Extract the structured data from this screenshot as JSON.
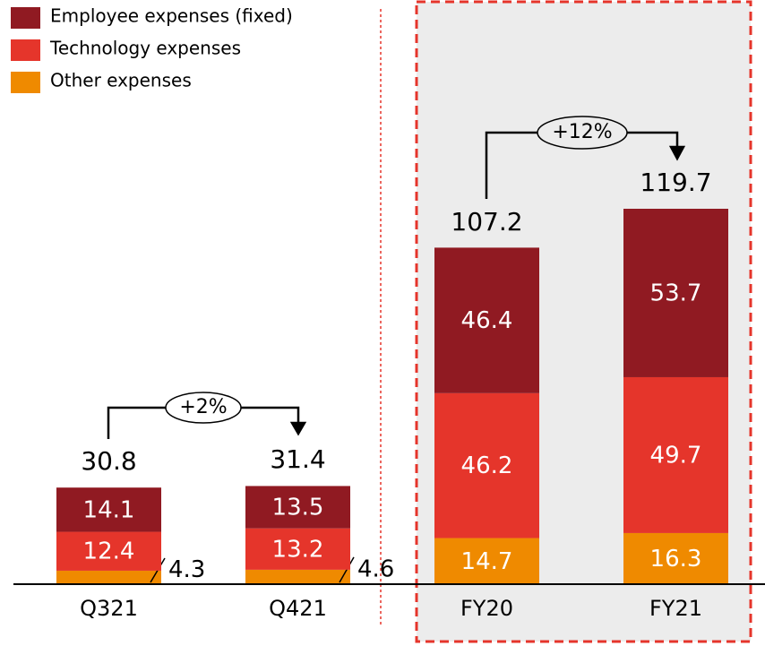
{
  "chart_data": {
    "type": "stacked_bar",
    "categories": [
      "Q321",
      "Q421",
      "FY20",
      "FY21"
    ],
    "series": [
      {
        "name": "Other expenses",
        "color": "#ef8a00",
        "values": [
          4.3,
          4.6,
          14.7,
          16.3
        ]
      },
      {
        "name": "Technology expenses",
        "color": "#e5352b",
        "values": [
          12.4,
          13.2,
          46.2,
          49.7
        ]
      },
      {
        "name": "Employee expenses (fixed)",
        "color": "#901a22",
        "values": [
          14.1,
          13.5,
          46.4,
          53.7
        ]
      }
    ],
    "totals": [
      30.8,
      31.4,
      107.2,
      119.7
    ],
    "annotations": [
      "+2%",
      "+12%"
    ]
  }
}
